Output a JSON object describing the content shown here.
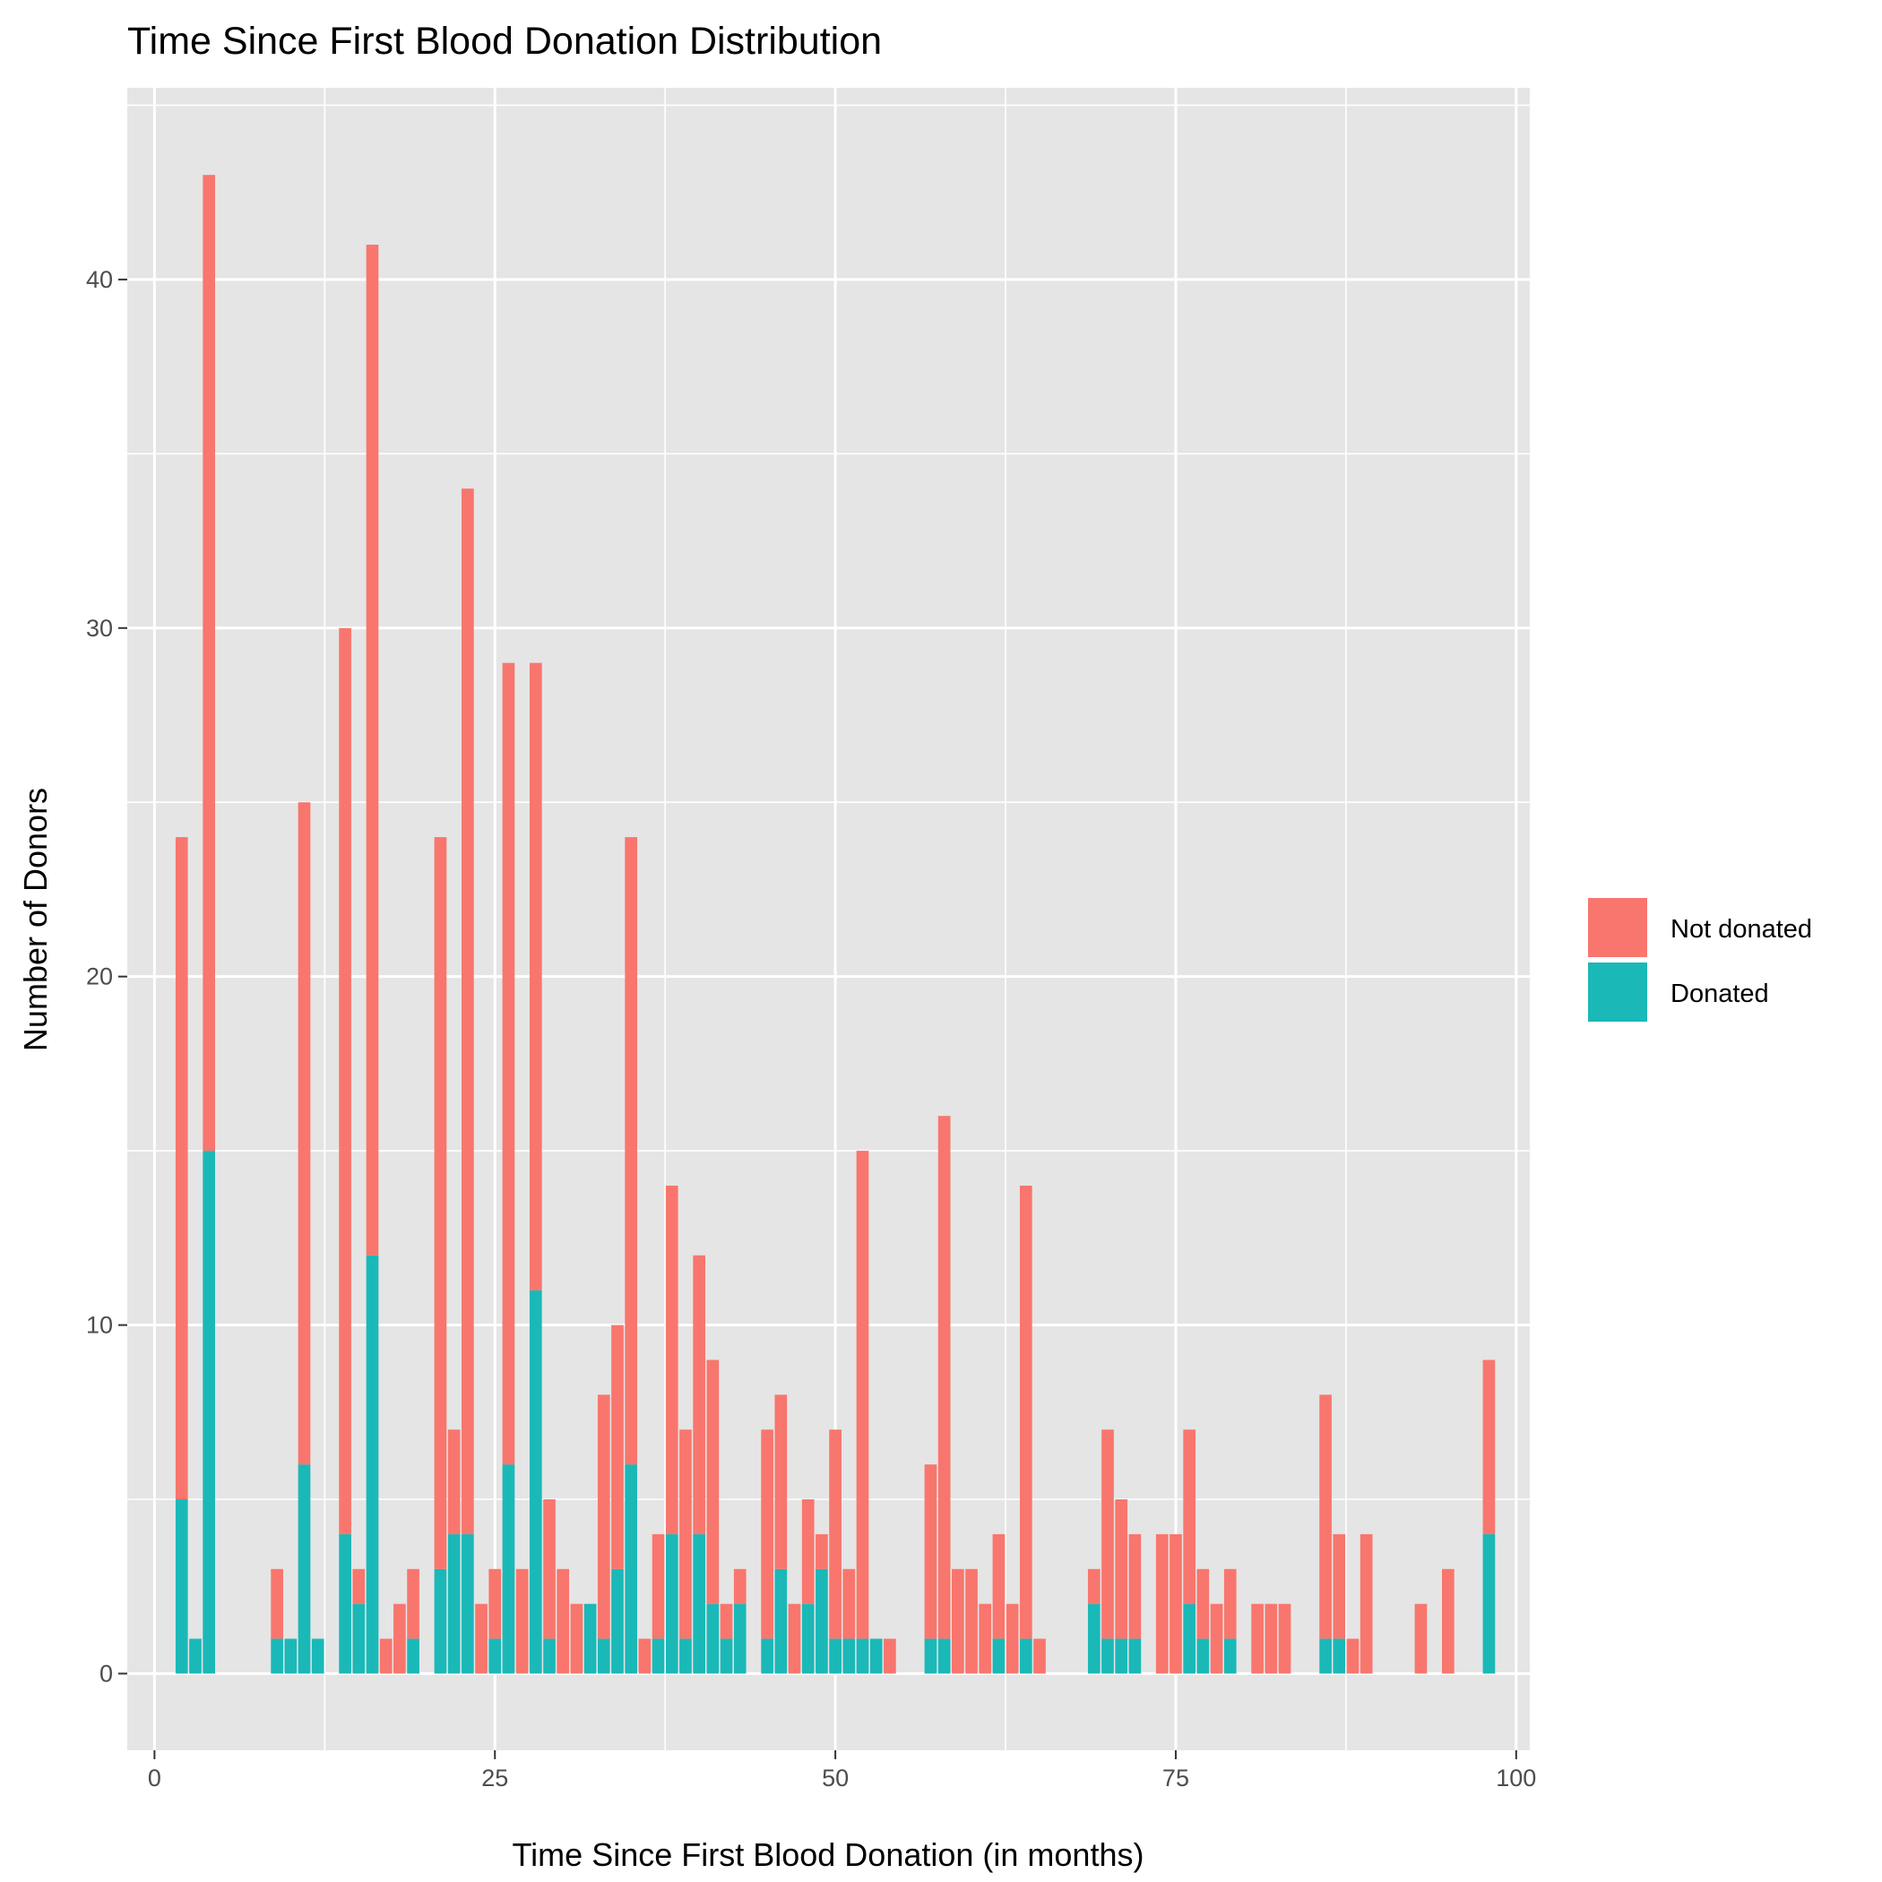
{
  "chart_data": {
    "type": "bar",
    "stacked": true,
    "title": "Time Since First Blood Donation Distribution",
    "xlabel": "Time Since First Blood Donation (in months)",
    "ylabel": "Number of Donors",
    "xlim": [
      -2,
      101
    ],
    "ylim": [
      -2.2,
      45.5
    ],
    "x_ticks": [
      0,
      25,
      50,
      75,
      100
    ],
    "y_ticks": [
      0,
      10,
      20,
      30,
      40
    ],
    "grid": true,
    "legend_position": "right",
    "colors": {
      "panel": "#e5e5e5",
      "grid": "#ffffff",
      "not_donated": "#F8766D",
      "donated": "#1BB8B8"
    },
    "x": [
      2,
      3,
      4,
      9,
      10,
      11,
      12,
      14,
      15,
      16,
      17,
      18,
      19,
      21,
      22,
      23,
      24,
      25,
      26,
      27,
      28,
      29,
      30,
      31,
      32,
      33,
      34,
      35,
      36,
      37,
      38,
      39,
      40,
      41,
      42,
      43,
      45,
      46,
      47,
      48,
      49,
      50,
      51,
      52,
      53,
      54,
      57,
      58,
      59,
      60,
      61,
      62,
      63,
      64,
      65,
      69,
      70,
      71,
      72,
      74,
      75,
      76,
      77,
      78,
      79,
      81,
      82,
      83,
      86,
      87,
      88,
      89,
      93,
      95,
      98
    ],
    "series": [
      {
        "name": "Not donated",
        "values": [
          19,
          0,
          28,
          2,
          0,
          19,
          0,
          26,
          1,
          29,
          1,
          2,
          2,
          21,
          3,
          30,
          2,
          2,
          23,
          3,
          18,
          4,
          3,
          2,
          0,
          7,
          7,
          18,
          1,
          3,
          10,
          6,
          8,
          7,
          1,
          1,
          6,
          5,
          2,
          3,
          1,
          6,
          2,
          14,
          0,
          1,
          5,
          15,
          3,
          3,
          2,
          3,
          2,
          13,
          1,
          1,
          6,
          4,
          3,
          4,
          4,
          5,
          2,
          2,
          2,
          2,
          2,
          2,
          7,
          3,
          1,
          4,
          2,
          3,
          5
        ]
      },
      {
        "name": "Donated",
        "values": [
          5,
          1,
          15,
          1,
          1,
          6,
          1,
          4,
          2,
          12,
          0,
          0,
          1,
          3,
          4,
          4,
          0,
          1,
          6,
          0,
          11,
          1,
          0,
          0,
          2,
          1,
          3,
          6,
          0,
          1,
          4,
          1,
          4,
          2,
          1,
          2,
          1,
          3,
          0,
          2,
          3,
          1,
          1,
          1,
          1,
          0,
          1,
          1,
          0,
          0,
          0,
          1,
          0,
          1,
          0,
          2,
          1,
          1,
          1,
          0,
          0,
          2,
          1,
          0,
          1,
          0,
          0,
          0,
          1,
          1,
          0,
          0,
          0,
          0,
          4
        ]
      }
    ]
  }
}
